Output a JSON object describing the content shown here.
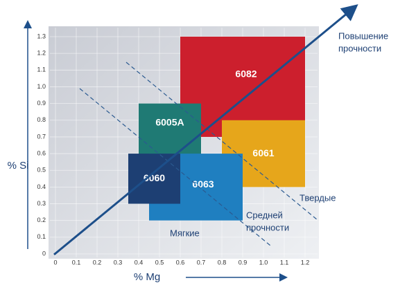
{
  "chart_data": {
    "type": "region",
    "xlabel": "% Mg",
    "ylabel": "% Si",
    "xlim": [
      0,
      1.2
    ],
    "ylim": [
      0,
      1.3
    ],
    "xticks": [
      0,
      0.1,
      0.2,
      0.3,
      0.4,
      0.5,
      0.6,
      0.7,
      0.8,
      0.9,
      {
        "value": 1,
        "label": "1.0"
      },
      1.1,
      1.2
    ],
    "yticks": [
      0,
      0.1,
      0.2,
      0.3,
      0.4,
      0.5,
      0.6,
      0.7,
      0.8,
      0.9,
      {
        "value": 1,
        "label": "1.0"
      },
      1.1,
      1.2,
      1.3
    ],
    "grid": true,
    "regions": [
      {
        "name": "6082",
        "x": [
          0.6,
          1.2
        ],
        "y": [
          0.7,
          1.3
        ],
        "color": "#cc1f2d"
      },
      {
        "name": "6061",
        "x": [
          0.8,
          1.2
        ],
        "y": [
          0.4,
          0.8
        ],
        "color": "#e6a61b"
      },
      {
        "name": "6005A",
        "x": [
          0.4,
          0.7
        ],
        "y": [
          0.5,
          0.9
        ],
        "color": "#1f7a74"
      },
      {
        "name": "6063",
        "x": [
          0.45,
          0.9
        ],
        "y": [
          0.2,
          0.6
        ],
        "color": "#1f7fc0"
      },
      {
        "name": "6060",
        "x": [
          0.35,
          0.6
        ],
        "y": [
          0.3,
          0.6
        ],
        "color": "#1d3f73"
      }
    ],
    "annotations": [
      {
        "lines": [
          "Повышение",
          "прочности"
        ]
      },
      {
        "lines": [
          "Твердые"
        ]
      },
      {
        "lines": [
          "Средней",
          "прочности"
        ]
      },
      {
        "lines": [
          "Мягкие"
        ]
      }
    ]
  }
}
